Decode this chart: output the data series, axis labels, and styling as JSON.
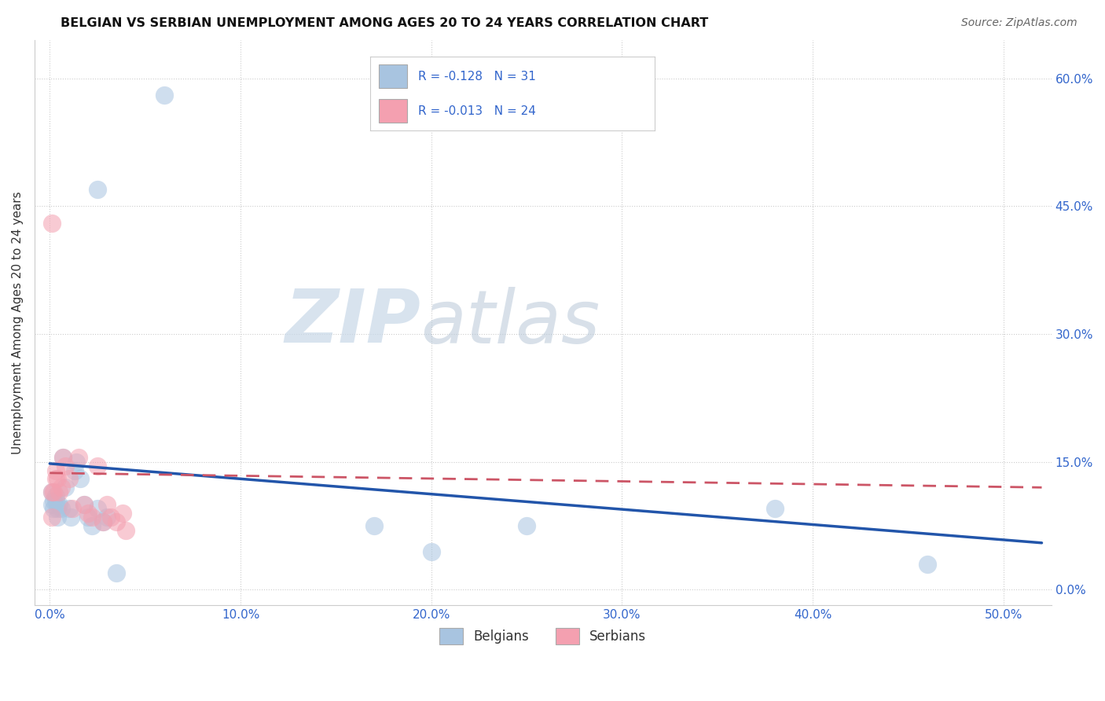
{
  "title": "BELGIAN VS SERBIAN UNEMPLOYMENT AMONG AGES 20 TO 24 YEARS CORRELATION CHART",
  "source": "Source: ZipAtlas.com",
  "xlabel_ticks": [
    "0.0%",
    "10.0%",
    "20.0%",
    "30.0%",
    "40.0%",
    "50.0%"
  ],
  "ylabel_ticks": [
    "0.0%",
    "15.0%",
    "30.0%",
    "45.0%",
    "60.0%"
  ],
  "xlabel_tick_vals": [
    0.0,
    0.1,
    0.2,
    0.3,
    0.4,
    0.5
  ],
  "ylabel_tick_vals": [
    0.0,
    0.15,
    0.3,
    0.45,
    0.6
  ],
  "xlim": [
    -0.008,
    0.525
  ],
  "ylim": [
    -0.018,
    0.645
  ],
  "ylabel": "Unemployment Among Ages 20 to 24 years",
  "legend_belgian": "Belgians",
  "legend_serbian": "Serbians",
  "R_belgian": "-0.128",
  "N_belgian": "31",
  "R_serbian": "-0.013",
  "N_serbian": "24",
  "belgian_color": "#a8c4e0",
  "serbian_color": "#f4a0b0",
  "belgian_line_color": "#2255aa",
  "serbian_line_color": "#cc5566",
  "watermark_zip": "ZIP",
  "watermark_atlas": "atlas",
  "grid_color": "#cccccc",
  "belgian_x": [
    0.001,
    0.001,
    0.002,
    0.002,
    0.003,
    0.003,
    0.004,
    0.004,
    0.005,
    0.006,
    0.007,
    0.008,
    0.01,
    0.011,
    0.013,
    0.014,
    0.016,
    0.018,
    0.02,
    0.022,
    0.025,
    0.028,
    0.03,
    0.035,
    0.06,
    0.17,
    0.2,
    0.25,
    0.38,
    0.46,
    0.025
  ],
  "belgian_y": [
    0.115,
    0.1,
    0.095,
    0.105,
    0.105,
    0.11,
    0.095,
    0.085,
    0.1,
    0.095,
    0.155,
    0.12,
    0.095,
    0.085,
    0.14,
    0.15,
    0.13,
    0.1,
    0.085,
    0.075,
    0.095,
    0.08,
    0.085,
    0.02,
    0.58,
    0.075,
    0.045,
    0.075,
    0.095,
    0.03,
    0.47
  ],
  "serbian_x": [
    0.001,
    0.001,
    0.001,
    0.002,
    0.003,
    0.003,
    0.004,
    0.005,
    0.006,
    0.007,
    0.008,
    0.01,
    0.012,
    0.015,
    0.018,
    0.02,
    0.022,
    0.025,
    0.028,
    0.03,
    0.032,
    0.035,
    0.038,
    0.04
  ],
  "serbian_y": [
    0.43,
    0.115,
    0.085,
    0.115,
    0.13,
    0.14,
    0.13,
    0.115,
    0.12,
    0.155,
    0.145,
    0.13,
    0.095,
    0.155,
    0.1,
    0.09,
    0.085,
    0.145,
    0.08,
    0.1,
    0.085,
    0.08,
    0.09,
    0.07
  ],
  "belgian_line_x0": 0.0,
  "belgian_line_x1": 0.52,
  "belgian_line_y0": 0.148,
  "belgian_line_y1": 0.055,
  "serbian_line_x0": 0.0,
  "serbian_line_x1": 0.52,
  "serbian_line_y0": 0.137,
  "serbian_line_y1": 0.12
}
